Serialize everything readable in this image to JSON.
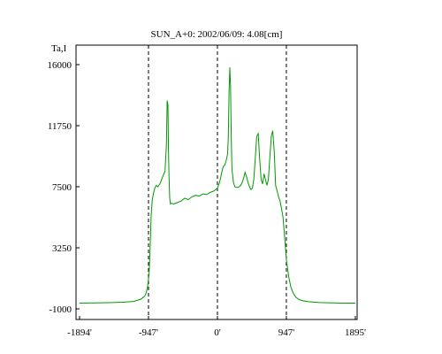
{
  "chart_data": {
    "type": "line",
    "title": "SUN_A+0: 2002/06/09: 4.08[cm]",
    "ylabel": "Ta,I",
    "xlabel": "",
    "xlim": [
      -1894,
      1895
    ],
    "ylim": [
      -1000,
      16800
    ],
    "x_ticks": [
      {
        "value": -1894,
        "label": "-1894'"
      },
      {
        "value": -947,
        "label": "-947'"
      },
      {
        "value": 0,
        "label": "0'"
      },
      {
        "value": 947,
        "label": "947'"
      },
      {
        "value": 1895,
        "label": "1895'"
      }
    ],
    "y_ticks": [
      {
        "value": 16000,
        "label": "16000"
      },
      {
        "value": 11750,
        "label": "11750"
      },
      {
        "value": 7500,
        "label": "7500"
      },
      {
        "value": 3250,
        "label": "3250"
      },
      {
        "value": -1000,
        "label": "-1000"
      }
    ],
    "vlines": [
      -947,
      0,
      947
    ],
    "grid": false,
    "series": [
      {
        "color": "#009900",
        "x": [
          -1894,
          -1700,
          -1500,
          -1300,
          -1150,
          -1050,
          -1000,
          -980,
          -960,
          -940,
          -925,
          -910,
          -895,
          -880,
          -860,
          -840,
          -820,
          -790,
          -760,
          -720,
          -700,
          -690,
          -680,
          -672,
          -665,
          -655,
          -645,
          -630,
          -600,
          -550,
          -500,
          -450,
          -400,
          -350,
          -300,
          -250,
          -200,
          -150,
          -100,
          -50,
          0,
          30,
          60,
          80,
          100,
          120,
          140,
          150,
          160,
          170,
          180,
          190,
          200,
          220,
          240,
          260,
          280,
          300,
          320,
          340,
          360,
          380,
          400,
          420,
          440,
          460,
          480,
          500,
          520,
          540,
          560,
          580,
          600,
          620,
          640,
          660,
          680,
          700,
          720,
          740,
          760,
          780,
          800,
          820,
          840,
          860,
          880,
          900,
          930,
          950,
          980,
          1010,
          1040,
          1080,
          1120,
          1170,
          1250,
          1400,
          1600,
          1800,
          1895
        ],
        "y": [
          -600,
          -590,
          -570,
          -540,
          -480,
          -320,
          -120,
          100,
          500,
          1400,
          3200,
          5500,
          6600,
          7000,
          7400,
          7600,
          7500,
          7700,
          8100,
          8600,
          10500,
          13500,
          13200,
          10000,
          8200,
          6700,
          6300,
          6350,
          6300,
          6400,
          6500,
          6700,
          6600,
          6800,
          6900,
          6850,
          7000,
          6950,
          7100,
          7200,
          7400,
          7800,
          8500,
          8900,
          9000,
          9300,
          9800,
          11000,
          14000,
          15800,
          14500,
          11000,
          8700,
          7800,
          7500,
          7450,
          7450,
          7500,
          7600,
          7800,
          8100,
          8500,
          8200,
          7800,
          7500,
          7300,
          7400,
          8000,
          9500,
          11000,
          11200,
          9500,
          8000,
          7700,
          8400,
          8000,
          7600,
          8000,
          9500,
          11000,
          11400,
          10000,
          7600,
          7200,
          6800,
          6500,
          6000,
          5400,
          3600,
          2300,
          1200,
          500,
          100,
          -200,
          -350,
          -440,
          -500,
          -560,
          -590,
          -600,
          -600
        ]
      }
    ]
  }
}
